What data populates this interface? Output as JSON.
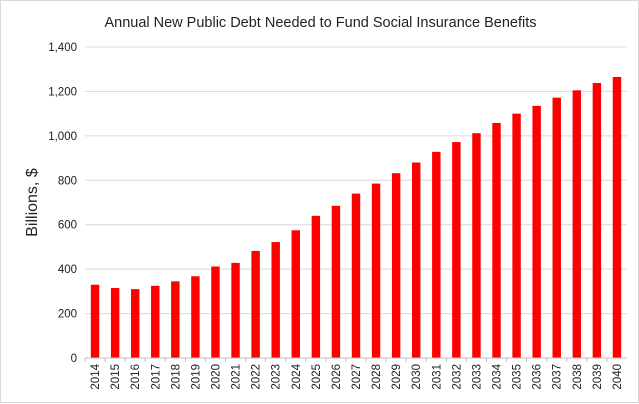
{
  "chart_data": {
    "type": "bar",
    "title": "Annual New Public Debt Needed to Fund Social Insurance Benefits",
    "xlabel": "",
    "ylabel": "Billions, $",
    "categories": [
      "2014",
      "2015",
      "2016",
      "2017",
      "2018",
      "2019",
      "2020",
      "2021",
      "2022",
      "2023",
      "2024",
      "2025",
      "2026",
      "2027",
      "2028",
      "2029",
      "2030",
      "2031",
      "2032",
      "2033",
      "2034",
      "2035",
      "2036",
      "2037",
      "2038",
      "2039",
      "2040"
    ],
    "values": [
      330,
      315,
      310,
      325,
      345,
      368,
      412,
      428,
      482,
      522,
      575,
      640,
      685,
      740,
      785,
      832,
      880,
      928,
      972,
      1012,
      1058,
      1100,
      1135,
      1172,
      1205,
      1238,
      1265
    ],
    "ylim": [
      0,
      1400
    ],
    "yticks": [
      0,
      200,
      400,
      600,
      800,
      1000,
      1200,
      1400
    ],
    "ytick_labels": [
      "0",
      "200",
      "400",
      "600",
      "800",
      "1,000",
      "1,200",
      "1,400"
    ],
    "grid": true,
    "bar_color": "#ff0000",
    "grid_color": "#d9d9d9",
    "axis_color": "#bfbfbf"
  }
}
